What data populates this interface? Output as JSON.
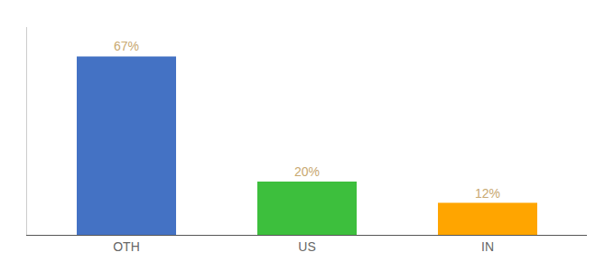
{
  "chart_data": {
    "type": "bar",
    "categories": [
      "OTH",
      "US",
      "IN"
    ],
    "values": [
      67,
      20,
      12
    ],
    "value_labels": [
      "67%",
      "20%",
      "12%"
    ],
    "colors": [
      "#4472C4",
      "#3DBF3D",
      "#FFA500"
    ],
    "ylim": [
      0,
      78
    ],
    "data_labels": true,
    "tick_labels": "x",
    "grid": false
  }
}
